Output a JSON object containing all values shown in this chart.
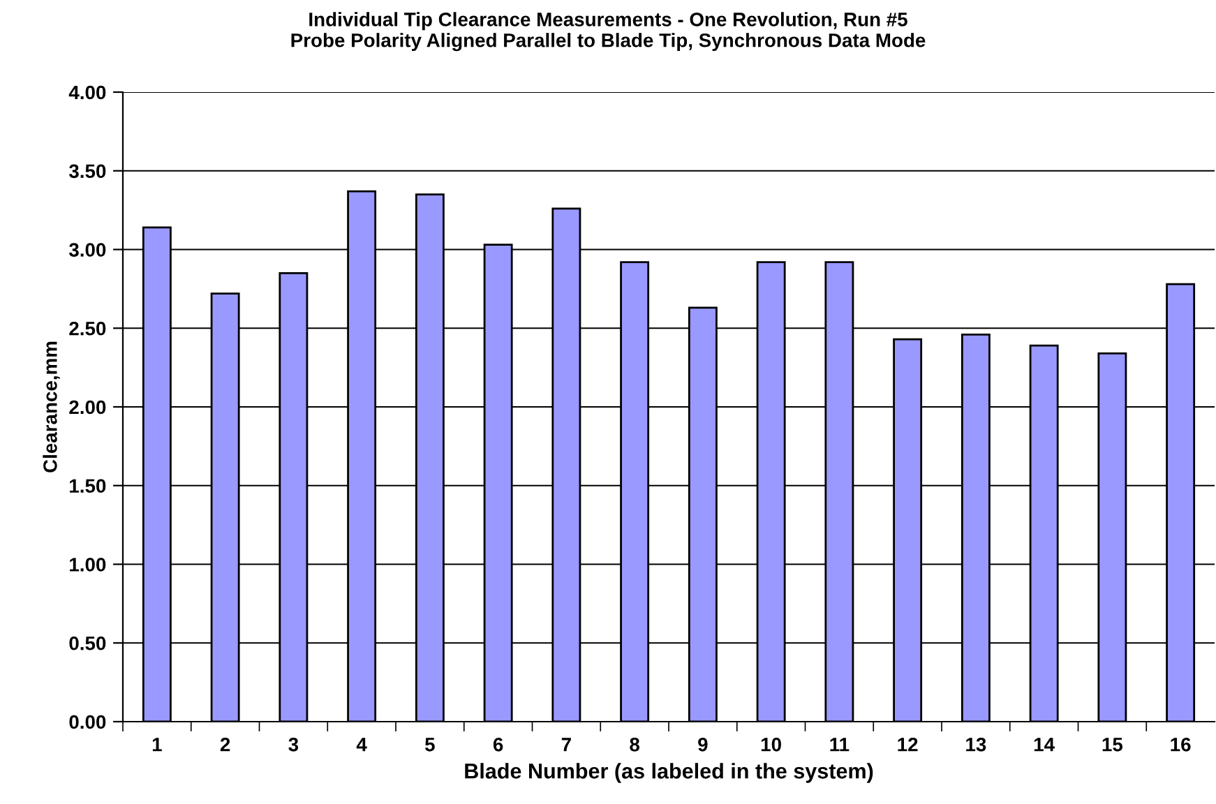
{
  "chart_data": {
    "type": "bar",
    "title": "Individual Tip Clearance Measurements - One Revolution, Run #5\nProbe Polarity Aligned Parallel to Blade Tip, Synchronous Data Mode",
    "xlabel": "Blade Number (as labeled in the system)",
    "ylabel": "Clearance,mm",
    "categories": [
      "1",
      "2",
      "3",
      "4",
      "5",
      "6",
      "7",
      "8",
      "9",
      "10",
      "11",
      "12",
      "13",
      "14",
      "15",
      "16"
    ],
    "values": [
      3.14,
      2.72,
      2.85,
      3.37,
      3.35,
      3.03,
      3.26,
      2.92,
      2.63,
      2.92,
      2.92,
      2.43,
      2.46,
      2.39,
      2.34,
      2.78
    ],
    "color": "#9999ff",
    "ylim": [
      0,
      4
    ],
    "yticks": [
      {
        "value": 0,
        "label": "0.00"
      },
      {
        "value": 0.5,
        "label": "0.50"
      },
      {
        "value": 1,
        "label": "1.00"
      },
      {
        "value": 1.5,
        "label": "1.50"
      },
      {
        "value": 2,
        "label": "2.00"
      },
      {
        "value": 2.5,
        "label": "2.50"
      },
      {
        "value": 3,
        "label": "3.00"
      },
      {
        "value": 3.5,
        "label": "3.50"
      },
      {
        "value": 4,
        "label": "4.00"
      }
    ],
    "grid": "y"
  }
}
